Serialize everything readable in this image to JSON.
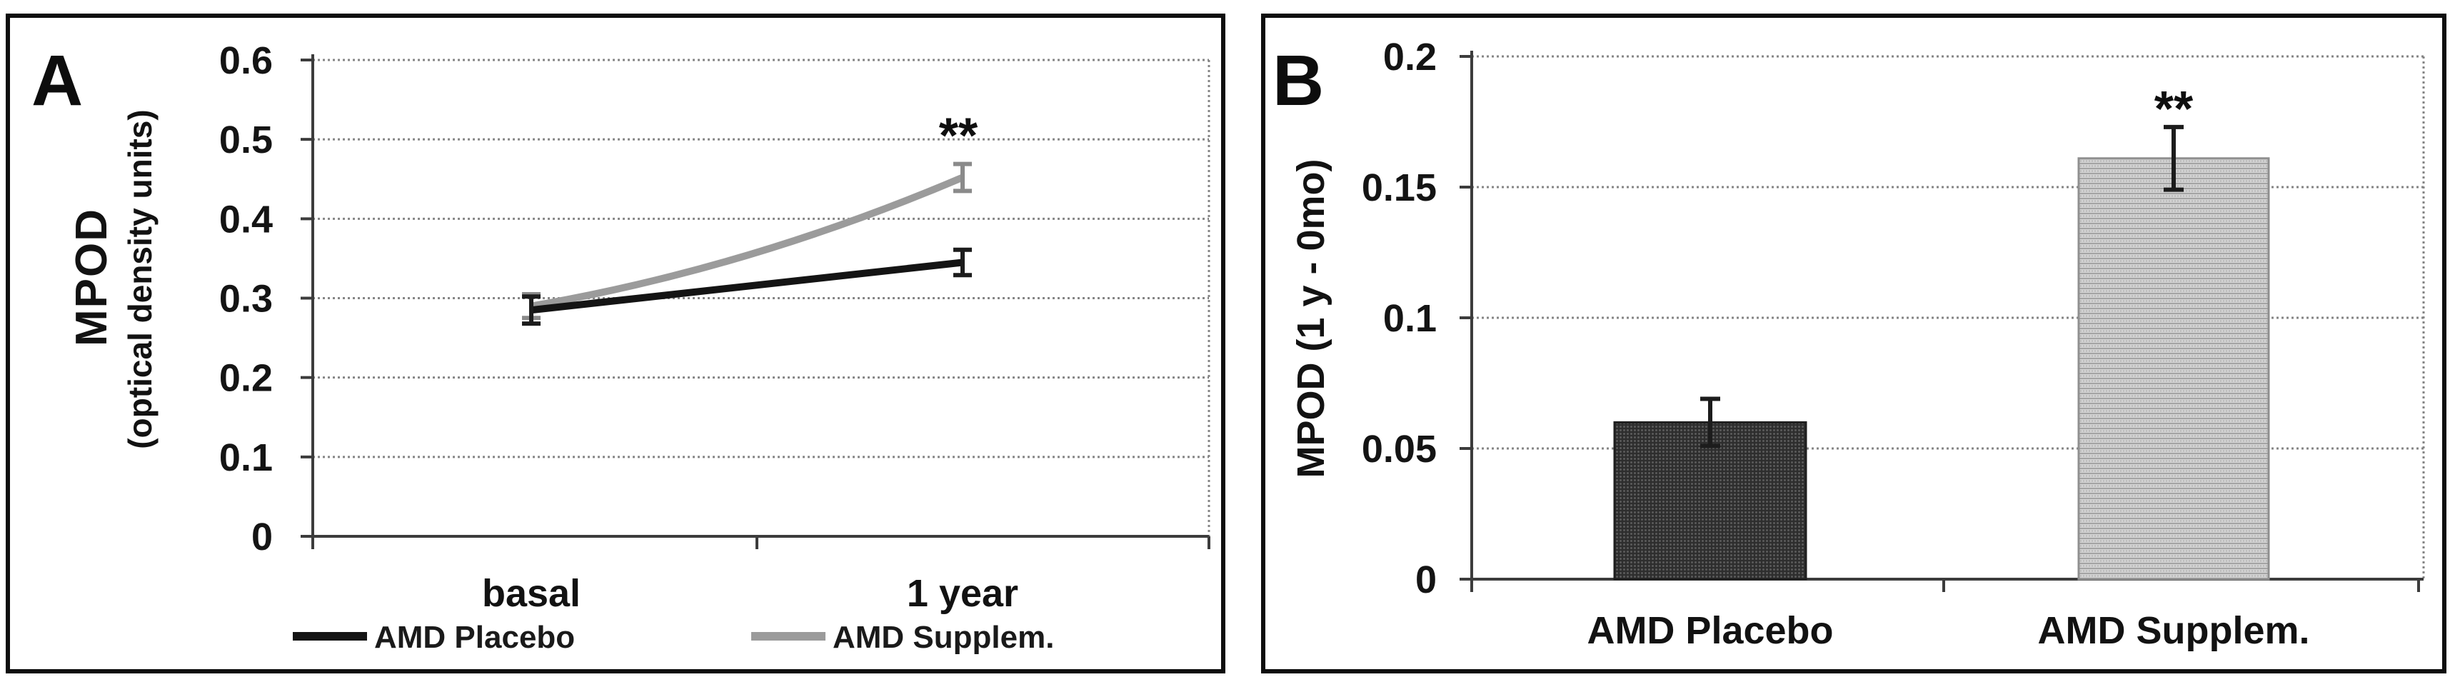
{
  "figure": {
    "panel_a_letter": "A",
    "panel_b_letter": "B",
    "panel_a_y_title_main": "MPOD",
    "panel_a_y_title_sub": "(optical density units)",
    "panel_b_y_title": "MPOD (1 y - 0mo)"
  },
  "colors": {
    "placebo_line": "#141414",
    "supplement_line": "#9b9b9b",
    "placebo_error": "#1c1c1c",
    "supplement_error": "#8a8a8a",
    "bar_error": "#1c1c1c",
    "grid": "#858585",
    "axis": "#3c3c3c",
    "text": "#121212"
  },
  "chart_data": [
    {
      "type": "line",
      "panel": "A",
      "categories": [
        "basal",
        "1 year"
      ],
      "series": [
        {
          "name": "AMD Placebo",
          "values": [
            0.285,
            0.345
          ],
          "errors": [
            0.017,
            0.016
          ],
          "color": "#141414"
        },
        {
          "name": "AMD Supplem.",
          "values": [
            0.29,
            0.452
          ],
          "errors": [
            0.015,
            0.017
          ],
          "color": "#9b9b9b"
        }
      ],
      "ylabel": "MPOD (optical density units)",
      "ylim": [
        0,
        0.6
      ],
      "yticks": [
        0,
        0.1,
        0.2,
        0.3,
        0.4,
        0.5,
        0.6
      ],
      "grid": true,
      "legend_position": "bottom",
      "annotation": {
        "text": "**",
        "category": "1 year",
        "y": 0.505
      }
    },
    {
      "type": "bar",
      "panel": "B",
      "categories": [
        "AMD Placebo",
        "AMD Supplem."
      ],
      "values": [
        0.06,
        0.161
      ],
      "errors": [
        0.009,
        0.012
      ],
      "bar_styles": [
        "dark-halftone",
        "light-halftone"
      ],
      "ylabel": "MPOD (1 y - 0mo)",
      "ylim": [
        0,
        0.2
      ],
      "yticks": [
        0,
        0.05,
        0.1,
        0.15,
        0.2
      ],
      "grid": true,
      "annotation": {
        "text": "**",
        "category": "AMD Supplem.",
        "y": 0.18
      }
    }
  ]
}
